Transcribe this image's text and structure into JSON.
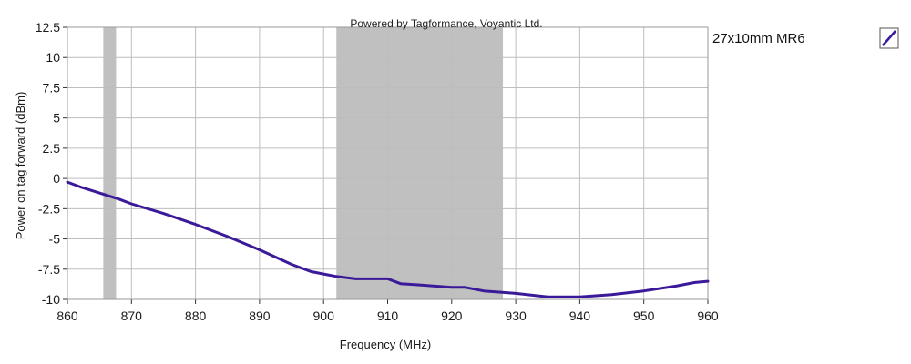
{
  "credit": "Powered by Tagformance, Voyantic Ltd.",
  "chart_data": {
    "type": "line",
    "title": "",
    "xlabel": "Frequency (MHz)",
    "ylabel": "Power on tag forward (dBm)",
    "xlim": [
      860,
      960
    ],
    "ylim": [
      -10,
      12.5
    ],
    "x_ticks": [
      860,
      870,
      880,
      890,
      900,
      910,
      920,
      930,
      940,
      950,
      960
    ],
    "y_ticks": [
      12.5,
      10,
      7.5,
      5,
      2.5,
      0,
      -2.5,
      -5,
      -7.5,
      -10
    ],
    "y_tick_labels": [
      "12.5",
      "10",
      "7.5",
      "5",
      "2.5",
      "0",
      "-2.5",
      "-5",
      "-7.5",
      "-10"
    ],
    "grid": true,
    "legend_position": "top-right",
    "shaded_bands": [
      {
        "x0": 865.6,
        "x1": 867.6
      },
      {
        "x0": 902,
        "x1": 928
      }
    ],
    "series": [
      {
        "name": "27x10mm MR6",
        "color": "#3b1a9a",
        "x": [
          860,
          862,
          865,
          868,
          870,
          875,
          880,
          885,
          890,
          895,
          898,
          900,
          902,
          905,
          910,
          912,
          915,
          920,
          922,
          925,
          930,
          935,
          940,
          945,
          950,
          955,
          958,
          960
        ],
        "y": [
          -0.3,
          -0.7,
          -1.2,
          -1.7,
          -2.1,
          -2.9,
          -3.8,
          -4.8,
          -5.9,
          -7.1,
          -7.7,
          -7.9,
          -8.1,
          -8.3,
          -8.3,
          -8.7,
          -8.8,
          -9.0,
          -9.0,
          -9.3,
          -9.5,
          -9.8,
          -9.8,
          -9.6,
          -9.3,
          -8.9,
          -8.6,
          -8.5
        ]
      }
    ]
  }
}
